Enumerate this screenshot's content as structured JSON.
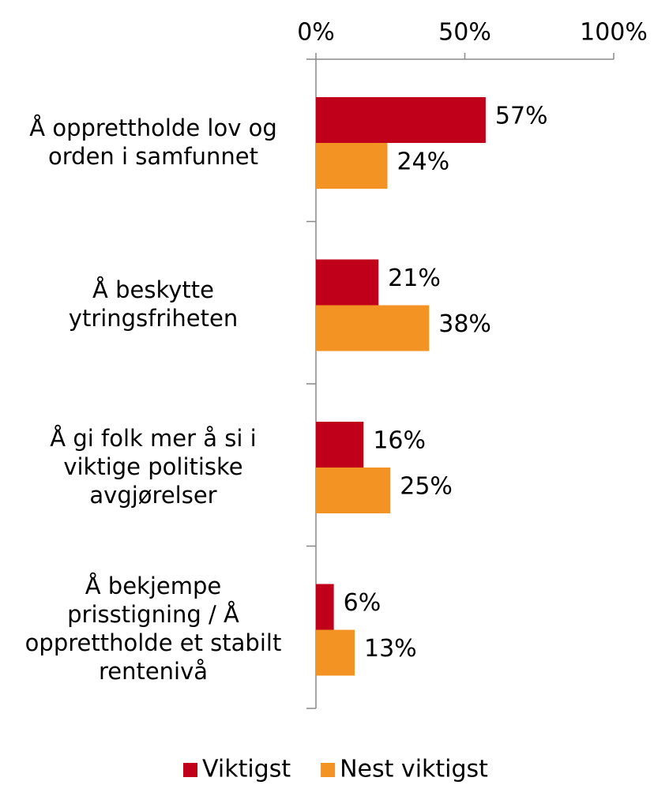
{
  "chart_data": {
    "type": "bar",
    "orientation": "horizontal",
    "categories": [
      "Å opprettholde lov og\norden i samfunnet",
      "Å beskytte\nytringsfriheten",
      "Å gi folk mer å si i\nviktige politiske\navgjørelser",
      "Å bekjempe\nprisstigning / Å\nopprettholde et stabilt\nrentenivå"
    ],
    "series": [
      {
        "name": "Viktigst",
        "color": "#c0001a",
        "values": [
          57,
          21,
          16,
          6
        ],
        "value_labels": [
          "57%",
          "21%",
          "16%",
          "6%"
        ]
      },
      {
        "name": "Nest viktigst",
        "color": "#f39323",
        "values": [
          24,
          38,
          25,
          13
        ],
        "value_labels": [
          "24%",
          "38%",
          "25%",
          "13%"
        ]
      }
    ],
    "xlim": [
      0,
      100
    ],
    "xticks": [
      {
        "value": 0,
        "label": "0%"
      },
      {
        "value": 50,
        "label": "50%"
      },
      {
        "value": 100,
        "label": "100%"
      }
    ],
    "legend": "bottom"
  }
}
